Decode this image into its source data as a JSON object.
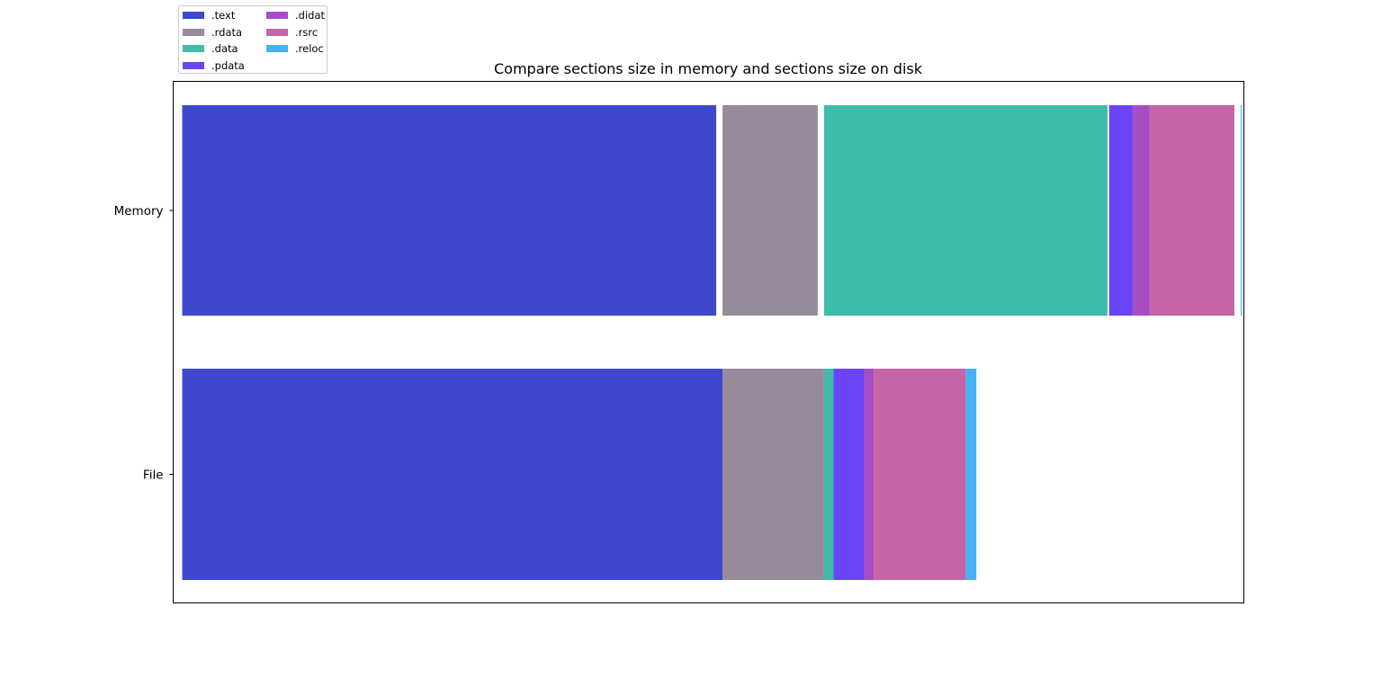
{
  "chart_data": {
    "type": "bar",
    "orientation": "horizontal-stacked",
    "title": "Compare sections size in memory and sections size on disk",
    "categories": [
      "Memory",
      "File"
    ],
    "sections": [
      {
        "name": ".text",
        "color": "#3f48cc",
        "memory_start": 0,
        "memory_size": 1010,
        "file_size": 1022
      },
      {
        "name": ".rdata",
        "color": "#978a9a",
        "memory_start": 1022,
        "memory_size": 180,
        "file_size": 192
      },
      {
        "name": ".data",
        "color": "#3ebba9",
        "memory_start": 1214,
        "memory_size": 536,
        "file_size": 18
      },
      {
        "name": ".pdata",
        "color": "#6a44f7",
        "memory_start": 1753,
        "memory_size": 44,
        "file_size": 58
      },
      {
        "name": ".didat",
        "color": "#a64dc6",
        "memory_start": 1797,
        "memory_size": 33,
        "file_size": 18
      },
      {
        "name": ".rsrc",
        "color": "#c564a7",
        "memory_start": 1830,
        "memory_size": 160,
        "file_size": 174
      },
      {
        "name": ".reloc",
        "color": "#45b3f2",
        "memory_start": 2002,
        "memory_size": 2,
        "file_size": 20
      }
    ],
    "xlim": [
      -17,
      2008
    ],
    "grid": false,
    "legend_position": "upper-left-outside",
    "legend_columns": 2
  }
}
